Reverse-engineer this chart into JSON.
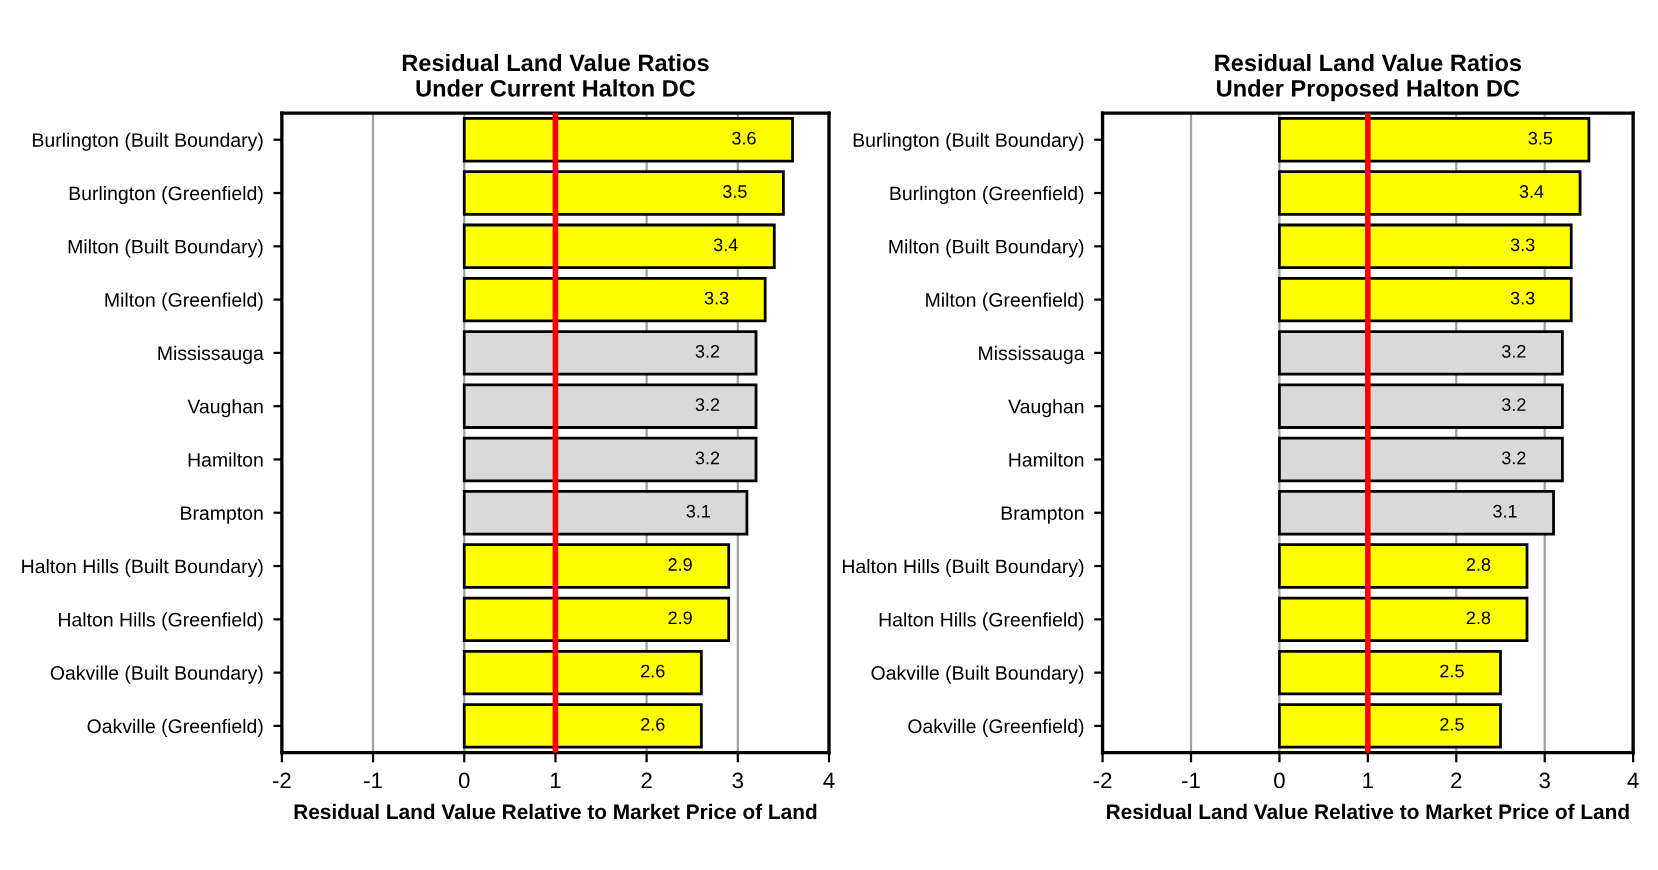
{
  "chart_data": [
    {
      "type": "bar",
      "orientation": "horizontal",
      "title": "Residual Land Value Ratios\nUnder Current Halton DC",
      "xlabel": "Residual Land Value Relative to Market Price of Land",
      "categories": [
        "Burlington (Built Boundary)",
        "Burlington (Greenfield)",
        "Milton (Built Boundary)",
        "Milton (Greenfield)",
        "Mississauga",
        "Vaughan",
        "Hamilton",
        "Brampton",
        "Halton Hills (Built Boundary)",
        "Halton Hills (Greenfield)",
        "Oakville (Built Boundary)",
        "Oakville (Greenfield)"
      ],
      "values": [
        3.6,
        3.5,
        3.4,
        3.3,
        3.2,
        3.2,
        3.2,
        3.1,
        2.9,
        2.9,
        2.6,
        2.6
      ],
      "colors": [
        "#ffff00",
        "#ffff00",
        "#ffff00",
        "#ffff00",
        "#d9d9d9",
        "#d9d9d9",
        "#d9d9d9",
        "#d9d9d9",
        "#ffff00",
        "#ffff00",
        "#ffff00",
        "#ffff00"
      ],
      "xlim": [
        -2,
        4
      ],
      "xticks": [
        -2,
        -1,
        0,
        1,
        2,
        3,
        4
      ],
      "grid": "x",
      "data_labels": true,
      "ref_lines": [
        {
          "axis": "x",
          "value": 1,
          "color": "#ff0000"
        }
      ]
    },
    {
      "type": "bar",
      "orientation": "horizontal",
      "title": "Residual Land Value Ratios\nUnder Proposed Halton DC",
      "xlabel": "Residual Land Value Relative to Market Price of Land",
      "categories": [
        "Burlington (Built Boundary)",
        "Burlington (Greenfield)",
        "Milton (Built Boundary)",
        "Milton (Greenfield)",
        "Mississauga",
        "Vaughan",
        "Hamilton",
        "Brampton",
        "Halton Hills (Built Boundary)",
        "Halton Hills (Greenfield)",
        "Oakville (Built Boundary)",
        "Oakville (Greenfield)"
      ],
      "values": [
        3.5,
        3.4,
        3.3,
        3.3,
        3.2,
        3.2,
        3.2,
        3.1,
        2.8,
        2.8,
        2.5,
        2.5
      ],
      "colors": [
        "#ffff00",
        "#ffff00",
        "#ffff00",
        "#ffff00",
        "#d9d9d9",
        "#d9d9d9",
        "#d9d9d9",
        "#d9d9d9",
        "#ffff00",
        "#ffff00",
        "#ffff00",
        "#ffff00"
      ],
      "xlim": [
        -2,
        4
      ],
      "xticks": [
        -2,
        -1,
        0,
        1,
        2,
        3,
        4
      ],
      "grid": "x",
      "data_labels": true,
      "ref_lines": [
        {
          "axis": "x",
          "value": 1,
          "color": "#ff0000"
        }
      ]
    }
  ]
}
